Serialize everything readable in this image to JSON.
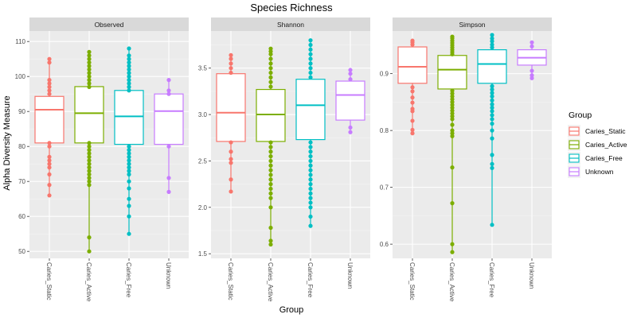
{
  "chart_data": {
    "type": "boxplot",
    "title": "Species Richness",
    "xlabel": "Group",
    "ylabel": "Alpha Diversity Measure",
    "categories": [
      "Caries_Static",
      "Caries_Active",
      "Caries_Free",
      "Unknown"
    ],
    "colors": [
      "#F8766D",
      "#7CAE00",
      "#00BFC4",
      "#C77CFF"
    ],
    "grid": true,
    "legend": {
      "title": "Group",
      "position": "right",
      "entries": [
        "Caries_Static",
        "Caries_Active",
        "Caries_Free",
        "Unknown"
      ]
    },
    "facets": [
      {
        "name": "Observed",
        "ylim": [
          48,
          113
        ],
        "yticks": [
          50,
          60,
          70,
          80,
          90,
          100,
          110
        ],
        "tick_labels": [
          "50",
          "60",
          "70",
          "80",
          "90",
          "100",
          "110"
        ],
        "boxes": [
          {
            "q1": 81,
            "median": 90.5,
            "q3": 94.3,
            "points": [
              105,
              104,
              99,
              98,
              97,
              96,
              95,
              81,
              80,
              77,
              76,
              75,
              74,
              72,
              69,
              66
            ]
          },
          {
            "q1": 81,
            "median": 89.5,
            "q3": 97.1,
            "points": [
              107,
              106,
              105,
              104,
              103,
              102,
              101,
              100,
              99,
              98,
              97,
              81,
              80,
              79,
              78,
              77,
              76,
              75,
              74,
              73,
              72,
              71,
              70,
              69,
              54,
              50
            ]
          },
          {
            "q1": 80.6,
            "median": 88.6,
            "q3": 96,
            "points": [
              108,
              106,
              105,
              104,
              103,
              102,
              101,
              100,
              99,
              98,
              97,
              96,
              80,
              79,
              78,
              77,
              76,
              75,
              74,
              73,
              72,
              70,
              68,
              65,
              63,
              60,
              55
            ]
          },
          {
            "q1": 80.6,
            "median": 90.1,
            "q3": 95,
            "points": [
              99,
              96,
              95,
              80,
              71,
              67
            ]
          }
        ]
      },
      {
        "name": "Shannon",
        "ylim": [
          1.45,
          3.9
        ],
        "yticks": [
          1.5,
          2.0,
          2.5,
          3.0,
          3.5
        ],
        "tick_labels": [
          "1.5",
          "2.0",
          "2.5",
          "3.0",
          "3.5"
        ],
        "boxes": [
          {
            "q1": 2.71,
            "median": 3.02,
            "q3": 3.44,
            "points": [
              3.64,
              3.6,
              3.55,
              3.5,
              3.45,
              2.7,
              2.6,
              2.52,
              2.48,
              2.3,
              2.17
            ]
          },
          {
            "q1": 2.71,
            "median": 3.0,
            "q3": 3.27,
            "points": [
              3.71,
              3.68,
              3.65,
              3.6,
              3.55,
              3.5,
              3.45,
              3.4,
              3.35,
              3.3,
              2.7,
              2.65,
              2.6,
              2.55,
              2.5,
              2.45,
              2.4,
              2.35,
              2.3,
              2.25,
              2.2,
              2.15,
              2.1,
              2.0,
              1.78,
              1.64,
              1.6
            ]
          },
          {
            "q1": 2.73,
            "median": 3.1,
            "q3": 3.38,
            "points": [
              3.8,
              3.75,
              3.7,
              3.65,
              3.6,
              3.55,
              3.5,
              3.45,
              3.4,
              2.7,
              2.65,
              2.6,
              2.55,
              2.5,
              2.45,
              2.4,
              2.35,
              2.3,
              2.25,
              2.2,
              2.15,
              2.1,
              2.05,
              2.0,
              1.9,
              1.8
            ]
          },
          {
            "q1": 2.94,
            "median": 3.21,
            "q3": 3.36,
            "points": [
              3.48,
              3.44,
              3.38,
              2.86,
              2.81
            ]
          }
        ]
      },
      {
        "name": "Simpson",
        "ylim": [
          0.575,
          0.975
        ],
        "yticks": [
          0.6,
          0.7,
          0.8,
          0.9
        ],
        "tick_labels": [
          "0.6",
          "0.7",
          "0.8",
          "0.9"
        ],
        "boxes": [
          {
            "q1": 0.883,
            "median": 0.912,
            "q3": 0.947,
            "points": [
              0.958,
              0.955,
              0.951,
              0.876,
              0.869,
              0.858,
              0.849,
              0.838,
              0.834,
              0.817,
              0.801,
              0.795
            ]
          },
          {
            "q1": 0.873,
            "median": 0.907,
            "q3": 0.932,
            "points": [
              0.965,
              0.962,
              0.958,
              0.954,
              0.95,
              0.946,
              0.942,
              0.938,
              0.934,
              0.87,
              0.865,
              0.86,
              0.855,
              0.85,
              0.845,
              0.84,
              0.835,
              0.83,
              0.825,
              0.82,
              0.81,
              0.8,
              0.795,
              0.79,
              0.735,
              0.672,
              0.6,
              0.586
            ]
          },
          {
            "q1": 0.883,
            "median": 0.917,
            "q3": 0.942,
            "points": [
              0.968,
              0.962,
              0.957,
              0.951,
              0.946,
              0.878,
              0.872,
              0.866,
              0.86,
              0.853,
              0.846,
              0.84,
              0.834,
              0.827,
              0.82,
              0.812,
              0.8,
              0.786,
              0.757,
              0.741,
              0.734,
              0.634
            ]
          },
          {
            "q1": 0.915,
            "median": 0.928,
            "q3": 0.942,
            "points": [
              0.955,
              0.948,
              0.905,
              0.897,
              0.892
            ]
          }
        ]
      }
    ]
  }
}
